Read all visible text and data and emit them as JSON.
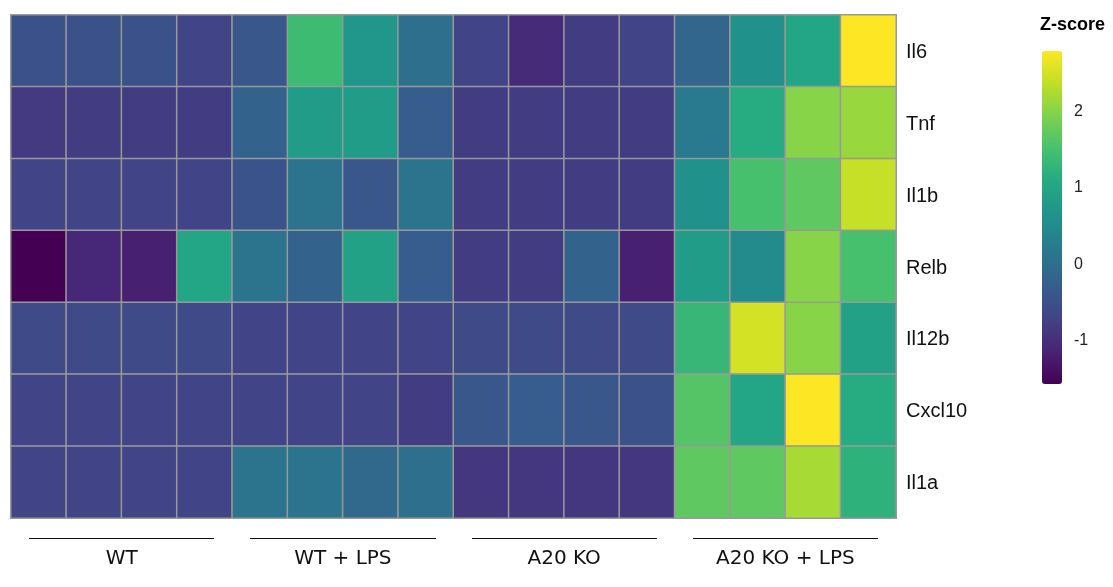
{
  "chart_data": {
    "type": "heatmap",
    "clabel": "Z-score",
    "categories": [
      null,
      null,
      null,
      null,
      null,
      null,
      null,
      null,
      null,
      null,
      null,
      null,
      null,
      null,
      null,
      null
    ],
    "y_categories": [
      "Il6",
      "Tnf",
      "Il1b",
      "Relb",
      "Il12b",
      "Cxcl10",
      "Il1a"
    ],
    "cells": [
      [
        -0.5,
        -0.5,
        -0.5,
        -0.7,
        -0.4,
        1.4,
        0.7,
        0.0,
        -0.7,
        -1.05,
        -0.8,
        -0.7,
        -0.15,
        0.6,
        1.0,
        2.78
      ],
      [
        -0.85,
        -0.8,
        -0.8,
        -0.8,
        -0.2,
        0.8,
        0.8,
        -0.3,
        -0.8,
        -0.8,
        -0.8,
        -0.8,
        0.2,
        1.1,
        2.0,
        2.1
      ],
      [
        -0.7,
        -0.7,
        -0.7,
        -0.7,
        -0.45,
        0.1,
        -0.4,
        0.1,
        -0.8,
        -0.8,
        -0.8,
        -0.8,
        0.6,
        1.5,
        1.7,
        2.4
      ],
      [
        -1.58,
        -1.1,
        -1.2,
        1.0,
        0.1,
        -0.2,
        0.9,
        -0.3,
        -0.8,
        -0.8,
        -0.2,
        -1.2,
        0.8,
        0.5,
        2.0,
        1.5
      ],
      [
        -0.6,
        -0.6,
        -0.6,
        -0.6,
        -0.7,
        -0.7,
        -0.7,
        -0.7,
        -0.6,
        -0.6,
        -0.6,
        -0.6,
        1.3,
        2.5,
        2.0,
        0.9
      ],
      [
        -0.7,
        -0.7,
        -0.7,
        -0.7,
        -0.7,
        -0.7,
        -0.7,
        -0.8,
        -0.4,
        -0.3,
        -0.4,
        -0.5,
        1.6,
        1.0,
        2.78,
        1.1
      ],
      [
        -0.7,
        -0.7,
        -0.7,
        -0.7,
        0.1,
        0.1,
        -0.1,
        0.0,
        -0.9,
        -0.9,
        -0.9,
        -0.9,
        1.7,
        1.7,
        2.2,
        1.2
      ]
    ],
    "clim": [
      -1.58,
      2.78
    ],
    "cticks": [
      -1,
      0,
      1,
      2
    ],
    "annotations": [
      "WT",
      "WT + LPS",
      "A20 KO",
      "A20 KO + LPS"
    ]
  }
}
